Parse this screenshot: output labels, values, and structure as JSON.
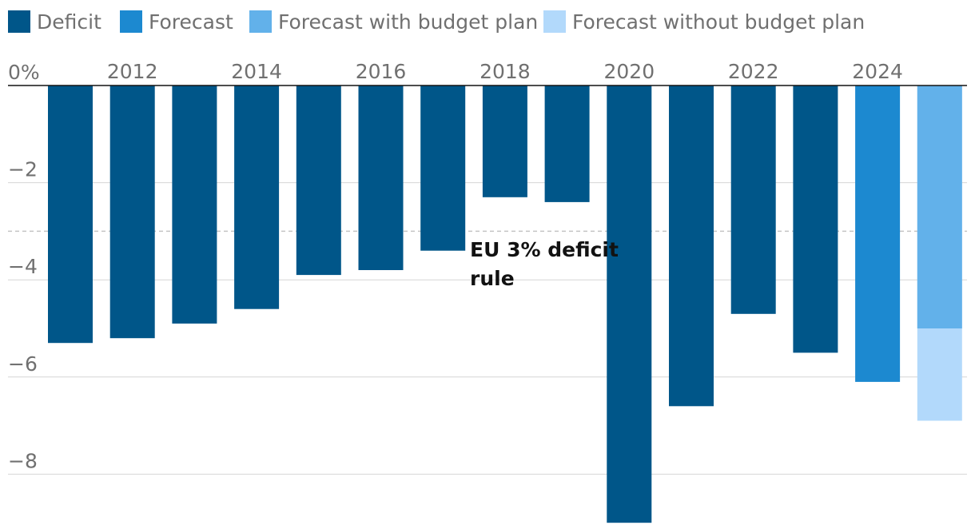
{
  "legend": [
    {
      "key": "deficit",
      "label": "Deficit",
      "color": "#005689"
    },
    {
      "key": "forecast",
      "label": "Forecast",
      "color": "#1c89d0"
    },
    {
      "key": "forecast_with_plan",
      "label": "Forecast with budget plan",
      "color": "#62b1ea"
    },
    {
      "key": "forecast_without_plan",
      "label": "Forecast without budget plan",
      "color": "#b2d9fb"
    }
  ],
  "chart_data": {
    "type": "bar",
    "title": "",
    "xlabel": "",
    "ylabel": "",
    "ylim": [
      -9,
      0
    ],
    "y_ticks": [
      0,
      -2,
      -4,
      -6,
      -8
    ],
    "y_tick_labels": [
      "0%",
      "−2",
      "−4",
      "−6",
      "−8"
    ],
    "x_tick_labels": [
      "2012",
      "2014",
      "2016",
      "2018",
      "2020",
      "2022",
      "2024"
    ],
    "categories": [
      "2011",
      "2012",
      "2013",
      "2014",
      "2015",
      "2016",
      "2017",
      "2018",
      "2019",
      "2020",
      "2021",
      "2022",
      "2023",
      "2024",
      "2025"
    ],
    "series": [
      {
        "name": "Deficit",
        "key": "deficit",
        "values": [
          -5.3,
          -5.2,
          -4.9,
          -4.6,
          -3.9,
          -3.8,
          -3.4,
          -2.3,
          -2.4,
          -9.0,
          -6.6,
          -4.7,
          -5.5,
          null,
          null
        ]
      },
      {
        "name": "Forecast",
        "key": "forecast",
        "values": [
          null,
          null,
          null,
          null,
          null,
          null,
          null,
          null,
          null,
          null,
          null,
          null,
          null,
          -6.1,
          null
        ]
      },
      {
        "name": "Forecast with budget plan",
        "key": "forecast_with_plan",
        "values": [
          null,
          null,
          null,
          null,
          null,
          null,
          null,
          null,
          null,
          null,
          null,
          null,
          null,
          null,
          -5.0
        ]
      },
      {
        "name": "Forecast without budget plan",
        "key": "forecast_without_plan",
        "values": [
          null,
          null,
          null,
          null,
          null,
          null,
          null,
          null,
          null,
          null,
          null,
          null,
          null,
          null,
          -6.9
        ]
      }
    ],
    "reference_line": {
      "value": -3,
      "style": "dashed"
    },
    "annotation": {
      "lines": [
        "EU 3% deficit",
        "rule"
      ],
      "near_value": -3
    }
  }
}
